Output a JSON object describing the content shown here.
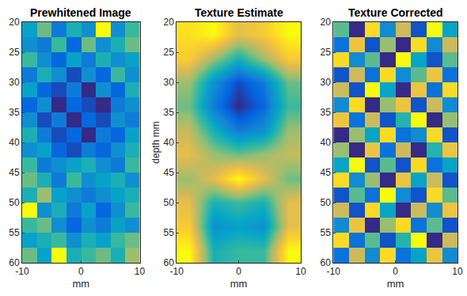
{
  "chart_data": [
    {
      "type": "heatmap",
      "title": "Prewhitened Image",
      "xlabel": "mm",
      "x": [
        -8.75,
        -6.25,
        -3.75,
        -1.25,
        1.25,
        3.75,
        6.25,
        8.75
      ],
      "y": [
        21.25,
        23.75,
        26.25,
        28.75,
        31.25,
        33.75,
        36.25,
        38.75,
        41.25,
        43.75,
        46.25,
        48.75,
        51.25,
        53.75,
        56.25,
        58.75
      ],
      "z": [
        [
          0.35,
          0.5,
          0.25,
          0.4,
          0.3,
          0.8,
          0.3,
          0.45
        ],
        [
          0.3,
          0.25,
          0.45,
          0.2,
          0.5,
          0.3,
          0.4,
          0.5
        ],
        [
          0.45,
          0.3,
          0.2,
          0.35,
          0.25,
          0.4,
          0.3,
          0.35
        ],
        [
          0.25,
          0.4,
          0.3,
          0.15,
          0.3,
          0.2,
          0.45,
          0.3
        ],
        [
          0.35,
          0.2,
          0.15,
          0.25,
          0.1,
          0.3,
          0.2,
          0.4
        ],
        [
          0.2,
          0.3,
          0.1,
          0.2,
          0.15,
          0.1,
          0.25,
          0.3
        ],
        [
          0.3,
          0.15,
          0.25,
          0.1,
          0.2,
          0.15,
          0.3,
          0.25
        ],
        [
          0.4,
          0.25,
          0.15,
          0.2,
          0.1,
          0.25,
          0.2,
          0.35
        ],
        [
          0.3,
          0.35,
          0.2,
          0.15,
          0.25,
          0.2,
          0.3,
          0.4
        ],
        [
          0.45,
          0.25,
          0.3,
          0.35,
          0.4,
          0.3,
          0.25,
          0.45
        ],
        [
          0.5,
          0.4,
          0.25,
          0.45,
          0.3,
          0.35,
          0.4,
          0.3
        ],
        [
          0.4,
          0.55,
          0.35,
          0.3,
          0.25,
          0.3,
          0.35,
          0.4
        ],
        [
          0.8,
          0.3,
          0.4,
          0.25,
          0.35,
          0.2,
          0.3,
          0.45
        ],
        [
          0.45,
          0.5,
          0.3,
          0.2,
          0.3,
          0.25,
          0.35,
          0.3
        ],
        [
          0.35,
          0.4,
          0.45,
          0.3,
          0.4,
          0.35,
          0.45,
          0.5
        ],
        [
          0.5,
          0.35,
          0.8,
          0.4,
          0.45,
          0.5,
          0.4,
          0.55
        ]
      ],
      "xlim": [
        -10,
        10
      ],
      "ylim": [
        60,
        20
      ],
      "xticks": [
        -10,
        0,
        10
      ],
      "yticks": [
        20,
        25,
        30,
        35,
        40,
        45,
        50,
        55,
        60
      ]
    },
    {
      "type": "heatmap",
      "title": "Texture Estimate",
      "xlabel": "mm",
      "ylabel": "depth mm",
      "x": [
        -8,
        -4,
        0,
        4,
        8
      ],
      "y": [
        22,
        26,
        30,
        34,
        38,
        42,
        46,
        50,
        54,
        58
      ],
      "z": [
        [
          0.8,
          0.85,
          0.7,
          0.75,
          0.85
        ],
        [
          0.75,
          0.6,
          0.45,
          0.6,
          0.75
        ],
        [
          0.6,
          0.35,
          0.2,
          0.3,
          0.55
        ],
        [
          0.55,
          0.3,
          0.15,
          0.25,
          0.5
        ],
        [
          0.65,
          0.45,
          0.3,
          0.35,
          0.6
        ],
        [
          0.7,
          0.6,
          0.55,
          0.6,
          0.65
        ],
        [
          0.6,
          0.7,
          0.85,
          0.7,
          0.55
        ],
        [
          0.7,
          0.45,
          0.5,
          0.45,
          0.7
        ],
        [
          0.75,
          0.35,
          0.4,
          0.35,
          0.7
        ],
        [
          0.85,
          0.45,
          0.5,
          0.5,
          0.85
        ]
      ],
      "xlim": [
        -10,
        10
      ],
      "ylim": [
        60,
        20
      ],
      "xticks": [
        -10,
        0,
        10
      ],
      "yticks": [
        20,
        25,
        30,
        35,
        40,
        45,
        50,
        55,
        60
      ]
    },
    {
      "type": "heatmap",
      "title": "Texture Corrected",
      "xlabel": "mm",
      "x": [
        -8.75,
        -6.25,
        -3.75,
        -1.25,
        1.25,
        3.75,
        6.25,
        8.75
      ],
      "y": [
        21.25,
        23.75,
        26.25,
        28.75,
        31.25,
        33.75,
        36.25,
        38.75,
        41.25,
        43.75,
        46.25,
        48.75,
        51.25,
        53.75,
        56.25,
        58.75
      ],
      "z": [
        [
          0.6,
          0.3,
          0.8,
          0.45,
          0.7,
          0.35,
          0.85,
          0.5
        ],
        [
          0.4,
          0.75,
          0.35,
          0.65,
          0.3,
          0.8,
          0.45,
          0.7
        ],
        [
          0.8,
          0.45,
          0.6,
          0.3,
          0.85,
          0.5,
          0.35,
          0.6
        ],
        [
          0.35,
          0.7,
          0.4,
          0.8,
          0.45,
          0.6,
          0.75,
          0.4
        ],
        [
          0.7,
          0.35,
          0.85,
          0.5,
          0.3,
          0.75,
          0.4,
          0.8
        ],
        [
          0.45,
          0.8,
          0.3,
          0.65,
          0.75,
          0.35,
          0.7,
          0.45
        ],
        [
          0.75,
          0.4,
          0.7,
          0.35,
          0.55,
          0.85,
          0.3,
          0.65
        ],
        [
          0.3,
          0.65,
          0.5,
          0.8,
          0.4,
          0.45,
          0.8,
          0.35
        ],
        [
          0.65,
          0.3,
          0.75,
          0.4,
          0.7,
          0.3,
          0.55,
          0.75
        ],
        [
          0.5,
          0.85,
          0.35,
          0.6,
          0.35,
          0.8,
          0.4,
          0.5
        ],
        [
          0.8,
          0.45,
          0.65,
          0.3,
          0.75,
          0.5,
          0.7,
          0.35
        ],
        [
          0.35,
          0.6,
          0.4,
          0.85,
          0.45,
          0.35,
          0.8,
          0.6
        ],
        [
          0.7,
          0.35,
          0.8,
          0.5,
          0.3,
          0.7,
          0.45,
          0.75
        ],
        [
          0.45,
          0.75,
          0.3,
          0.65,
          0.8,
          0.4,
          0.6,
          0.35
        ],
        [
          0.8,
          0.4,
          0.6,
          0.35,
          0.55,
          0.85,
          0.3,
          0.7
        ],
        [
          0.4,
          0.7,
          0.45,
          0.8,
          0.4,
          0.5,
          0.75,
          0.45
        ]
      ],
      "xlim": [
        -10,
        10
      ],
      "ylim": [
        60,
        20
      ],
      "xticks": [
        -10,
        0,
        10
      ],
      "yticks": [
        20,
        25,
        30,
        35,
        40,
        45,
        50,
        55,
        60
      ]
    }
  ]
}
